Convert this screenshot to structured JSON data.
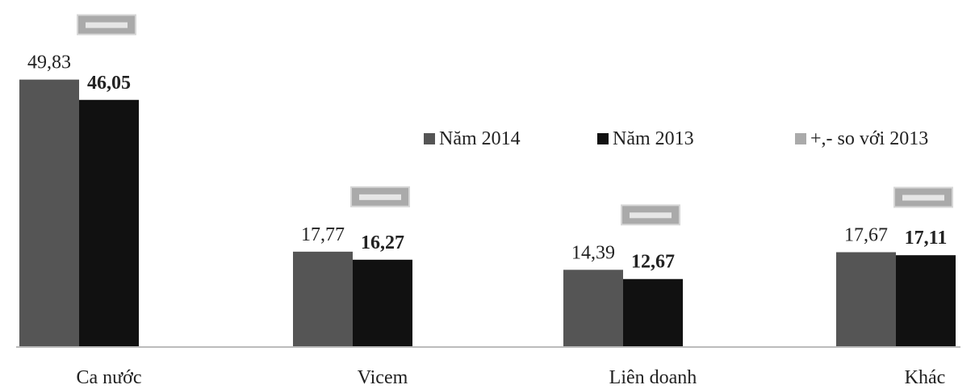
{
  "chart_data": {
    "type": "bar",
    "categories": [
      "Ca nước",
      "Vicem",
      "Liên doanh",
      "Khác"
    ],
    "series": [
      {
        "name": "Năm 2014",
        "values": [
          49.83,
          17.77,
          14.39,
          17.67
        ],
        "labels": [
          "49,83",
          "17,77",
          "14,39",
          "17,67"
        ],
        "color": "#555555"
      },
      {
        "name": "Năm 2013",
        "values": [
          46.05,
          16.27,
          12.67,
          17.11
        ],
        "labels": [
          "46,05",
          "16,27",
          "12,67",
          "17,11"
        ],
        "color": "#111111"
      }
    ],
    "change_series": {
      "name": "+,- so với 2013",
      "color": "#aaaaaa"
    },
    "legend_position": "top-right",
    "grid": false
  }
}
